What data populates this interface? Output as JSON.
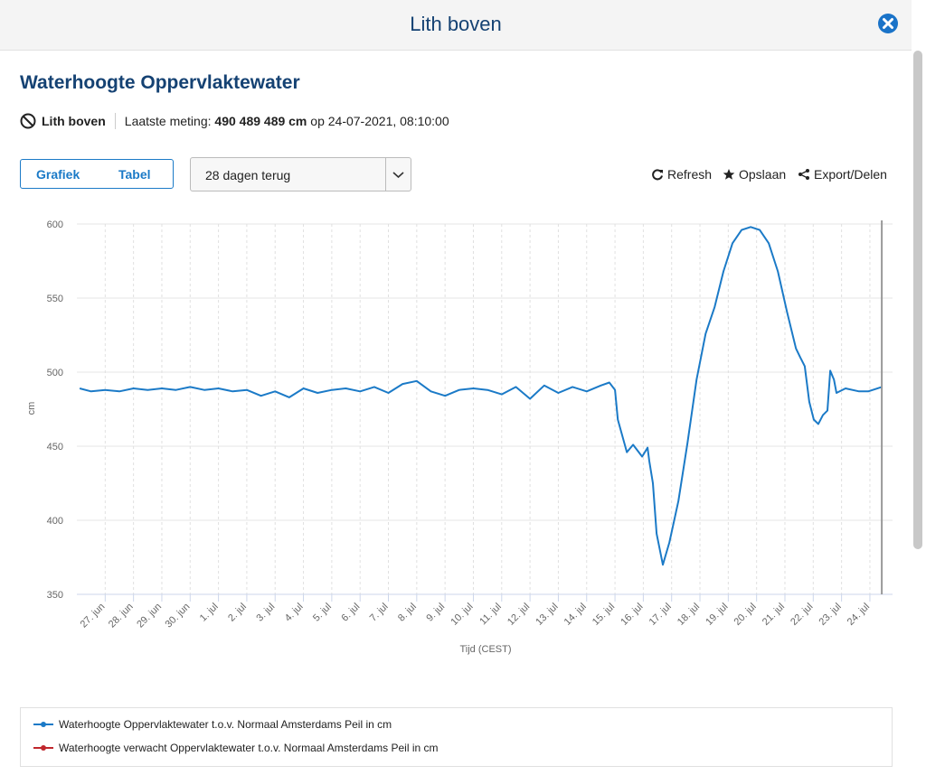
{
  "header": {
    "title": "Lith boven"
  },
  "section": {
    "title": "Waterhoogte Oppervlaktewater"
  },
  "info": {
    "station": "Lith boven",
    "label": "Laatste meting:",
    "value": "490 489 489 cm",
    "suffix": "op 24-07-2021, 08:10:00"
  },
  "tabs": [
    "Grafiek",
    "Tabel"
  ],
  "dropdown": "28 dagen terug",
  "actions": [
    "Refresh",
    "Opslaan",
    "Export/Delen"
  ],
  "chart_data": {
    "type": "line",
    "ylabel": "cm",
    "xlabel": "Tijd (CEST)",
    "xlim": [
      -1,
      27.8
    ],
    "ylim": [
      350,
      600
    ],
    "yticks": [
      350,
      400,
      450,
      500,
      550,
      600
    ],
    "grid": true,
    "xticks": [
      {
        "value": 0,
        "label": "27. jun"
      },
      {
        "value": 1,
        "label": "28. jun"
      },
      {
        "value": 2,
        "label": "29. jun"
      },
      {
        "value": 3,
        "label": "30. jun"
      },
      {
        "value": 4,
        "label": "1. jul"
      },
      {
        "value": 5,
        "label": "2. jul"
      },
      {
        "value": 6,
        "label": "3. jul"
      },
      {
        "value": 7,
        "label": "4. jul"
      },
      {
        "value": 8,
        "label": "5. jul"
      },
      {
        "value": 9,
        "label": "6. jul"
      },
      {
        "value": 10,
        "label": "7. jul"
      },
      {
        "value": 11,
        "label": "8. jul"
      },
      {
        "value": 12,
        "label": "9. jul"
      },
      {
        "value": 13,
        "label": "10. jul"
      },
      {
        "value": 14,
        "label": "11. jul"
      },
      {
        "value": 15,
        "label": "12. jul"
      },
      {
        "value": 16,
        "label": "13. jul"
      },
      {
        "value": 17,
        "label": "14. jul"
      },
      {
        "value": 18,
        "label": "15. jul"
      },
      {
        "value": 19,
        "label": "16. jul"
      },
      {
        "value": 20,
        "label": "17. jul"
      },
      {
        "value": 21,
        "label": "18. jul"
      },
      {
        "value": 22,
        "label": "19. jul"
      },
      {
        "value": 23,
        "label": "20. jul"
      },
      {
        "value": 24,
        "label": "21. jul"
      },
      {
        "value": 25,
        "label": "22. jul"
      },
      {
        "value": 26,
        "label": "23. jul"
      },
      {
        "value": 27,
        "label": "24. jul"
      }
    ],
    "x": [
      -0.9,
      -0.5,
      0,
      0.5,
      1,
      1.5,
      2,
      2.5,
      3,
      3.5,
      4,
      4.5,
      5,
      5.5,
      6,
      6.5,
      7,
      7.5,
      8,
      8.5,
      9,
      9.5,
      10,
      10.5,
      11,
      11.5,
      12,
      12.5,
      13,
      13.5,
      14,
      14.5,
      15,
      15.5,
      16,
      16.5,
      17,
      17.5,
      17.8,
      18.0,
      18.1,
      18.42,
      18.64,
      18.96,
      19.15,
      19.21,
      19.34,
      19.47,
      19.69,
      19.92,
      20.24,
      20.56,
      20.88,
      21.2,
      21.52,
      21.83,
      22.15,
      22.47,
      22.79,
      23.11,
      23.43,
      23.75,
      24.07,
      24.39,
      24.54,
      24.7,
      24.86,
      25.02,
      25.18,
      25.34,
      25.5,
      25.6,
      25.73,
      25.82,
      26.14,
      26.62,
      26.94,
      27.42
    ],
    "series": [
      {
        "name": "Waterhoogte Oppervlaktewater t.o.v. Normaal Amsterdams Peil in cm",
        "color": "#1b7ac7",
        "values": [
          489,
          487,
          488,
          487,
          489,
          488,
          489,
          488,
          490,
          488,
          489,
          487,
          488,
          484,
          487,
          483,
          489,
          486,
          488,
          489,
          487,
          490,
          486,
          492,
          494,
          487,
          484,
          488,
          489,
          488,
          485,
          490,
          482,
          491,
          486,
          490,
          487,
          491,
          493,
          488,
          468,
          446,
          451,
          443,
          449,
          440,
          425,
          391,
          370,
          385,
          413,
          452,
          495,
          526,
          544,
          568,
          587,
          596,
          598,
          596,
          587,
          568,
          541,
          516,
          510,
          504,
          480,
          468,
          465,
          471,
          474,
          501,
          495,
          486,
          489,
          487,
          487,
          490
        ]
      },
      {
        "name": "Waterhoogte verwacht Oppervlaktewater t.o.v. Normaal Amsterdams Peil in cm",
        "color": "#c0272d"
      }
    ]
  }
}
